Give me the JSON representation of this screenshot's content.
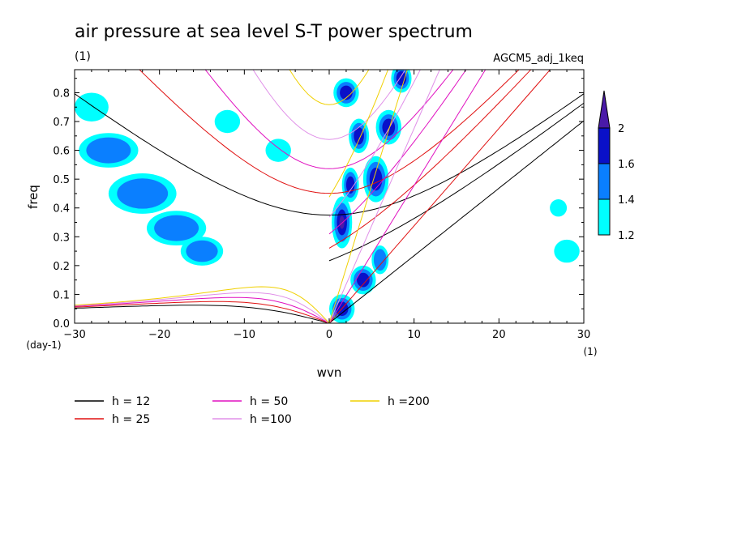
{
  "chart_data": {
    "type": "heatmap",
    "title": "air pressure at sea level S-T power spectrum",
    "subtitle_left": "(1)",
    "subtitle_right": "AGCM5_adj_1keq",
    "xlabel": "wvn",
    "ylabel": "freq",
    "x_unit": "(1)",
    "y_unit": "(day-1)",
    "xlim": [
      -30,
      30
    ],
    "ylim": [
      0,
      0.88
    ],
    "x_ticks": [
      -30,
      -20,
      -10,
      0,
      10,
      20,
      30
    ],
    "y_ticks": [
      0.0,
      0.1,
      0.2,
      0.3,
      0.4,
      0.5,
      0.6,
      0.7,
      0.8
    ],
    "colorbar": {
      "levels": [
        "1.2",
        "1.4",
        "1.6",
        "2"
      ],
      "colors": [
        "#00ffff",
        "#0a7fff",
        "#0a10c8",
        "#4a1aa8"
      ]
    },
    "dispersion_curves": [
      {
        "label": "h = 12",
        "h": 12,
        "color": "#000000"
      },
      {
        "label": "h = 25",
        "h": 25,
        "color": "#e01010"
      },
      {
        "label": "h = 50",
        "h": 50,
        "color": "#e010c0"
      },
      {
        "label": "h =100",
        "h": 100,
        "color": "#e090e8"
      },
      {
        "label": "h =200",
        "h": 200,
        "color": "#f0d000"
      }
    ],
    "regions": [
      {
        "x": 1.5,
        "y": 0.35,
        "rx": 1.2,
        "ry": 0.09,
        "level": 3
      },
      {
        "x": 2.5,
        "y": 0.48,
        "rx": 1.0,
        "ry": 0.06,
        "level": 2
      },
      {
        "x": 3.5,
        "y": 0.65,
        "rx": 1.2,
        "ry": 0.06,
        "level": 2
      },
      {
        "x": 2.0,
        "y": 0.8,
        "rx": 1.5,
        "ry": 0.05,
        "level": 2
      },
      {
        "x": 5.5,
        "y": 0.5,
        "rx": 1.5,
        "ry": 0.08,
        "level": 2
      },
      {
        "x": 7.0,
        "y": 0.68,
        "rx": 1.5,
        "ry": 0.06,
        "level": 2
      },
      {
        "x": 8.5,
        "y": 0.85,
        "rx": 1.2,
        "ry": 0.05,
        "level": 2
      },
      {
        "x": 4.0,
        "y": 0.15,
        "rx": 1.5,
        "ry": 0.05,
        "level": 2
      },
      {
        "x": 6.0,
        "y": 0.22,
        "rx": 1.0,
        "ry": 0.05,
        "level": 1
      },
      {
        "x": 1.5,
        "y": 0.05,
        "rx": 1.5,
        "ry": 0.05,
        "level": 2
      },
      {
        "x": -26.0,
        "y": 0.6,
        "rx": 3.5,
        "ry": 0.06,
        "level": 1
      },
      {
        "x": -22.0,
        "y": 0.45,
        "rx": 4.0,
        "ry": 0.07,
        "level": 1
      },
      {
        "x": -18.0,
        "y": 0.33,
        "rx": 3.5,
        "ry": 0.06,
        "level": 1
      },
      {
        "x": -15.0,
        "y": 0.25,
        "rx": 2.5,
        "ry": 0.05,
        "level": 1
      },
      {
        "x": -28.0,
        "y": 0.75,
        "rx": 2.0,
        "ry": 0.05,
        "level": 0
      },
      {
        "x": -12.0,
        "y": 0.7,
        "rx": 1.5,
        "ry": 0.04,
        "level": 0
      },
      {
        "x": 28.0,
        "y": 0.25,
        "rx": 1.5,
        "ry": 0.04,
        "level": 0
      },
      {
        "x": 27.0,
        "y": 0.4,
        "rx": 1.0,
        "ry": 0.03,
        "level": 0
      },
      {
        "x": -6.0,
        "y": 0.6,
        "rx": 1.5,
        "ry": 0.04,
        "level": 0
      }
    ]
  }
}
